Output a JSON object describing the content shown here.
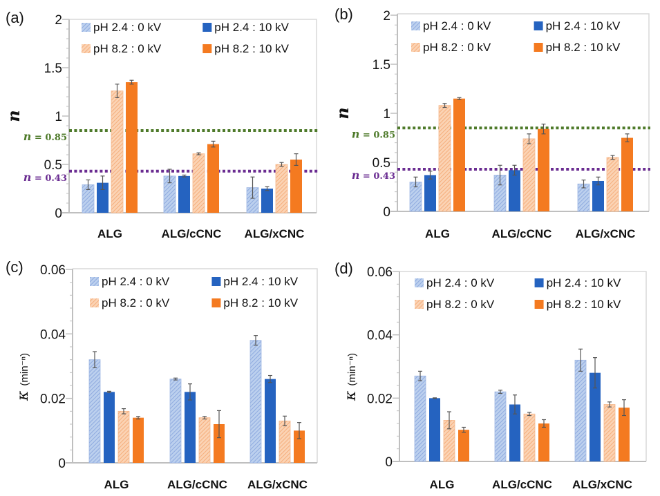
{
  "figure": {
    "colors": {
      "pH2.4_0kV": "#a9bfe6",
      "pH2.4_10kV": "#2563c0",
      "pH8.2_0kV": "#f8c29b",
      "pH8.2_10kV": "#f47a20",
      "ref_085": "#4e7a2a",
      "ref_043": "#6a2c91",
      "axis": "#bfbfbf",
      "errorbar": "#555555"
    }
  },
  "chart_data": [
    {
      "panel": "(a)",
      "type": "bar",
      "title": "",
      "xlabel": "",
      "ylabel": "n",
      "ylim": [
        0,
        2
      ],
      "yticks": [
        "0",
        "0.5",
        "1",
        "1.5",
        "2"
      ],
      "ytick_values": [
        0,
        0.5,
        1,
        1.5,
        2
      ],
      "minor_step": 0.1,
      "categories": [
        "ALG",
        "ALG/cCNC",
        "ALG/xCNC"
      ],
      "legend": "top",
      "series": [
        {
          "name": "pH 2.4 : 0 kV",
          "key": "pH2.4_0kV",
          "hatched": true,
          "values": [
            0.29,
            0.38,
            0.26
          ],
          "errors": [
            0.05,
            0.07,
            0.11
          ]
        },
        {
          "name": "pH 2.4 : 10 kV",
          "key": "pH2.4_10kV",
          "hatched": false,
          "values": [
            0.31,
            0.38,
            0.25
          ],
          "errors": [
            0.07,
            0.01,
            0.02
          ]
        },
        {
          "name": "pH 8.2 : 0 kV",
          "key": "pH8.2_0kV",
          "hatched": true,
          "values": [
            1.26,
            0.61,
            0.5
          ],
          "errors": [
            0.07,
            0.01,
            0.02
          ]
        },
        {
          "name": "pH 8.2 : 10 kV",
          "key": "pH8.2_10kV",
          "hatched": false,
          "values": [
            1.35,
            0.71,
            0.55
          ],
          "errors": [
            0.02,
            0.03,
            0.06
          ]
        }
      ],
      "reference_lines": [
        {
          "label_prefix": "n",
          "label_value": " = 0.85",
          "value": 0.85,
          "key": "ref_085"
        },
        {
          "label_prefix": "n",
          "label_value": " = 0.43",
          "value": 0.43,
          "key": "ref_043"
        }
      ]
    },
    {
      "panel": "(b)",
      "type": "bar",
      "title": "",
      "xlabel": "",
      "ylabel": "n",
      "ylim": [
        0,
        2
      ],
      "yticks": [
        "0",
        "0.5",
        "1",
        "1.5",
        "2"
      ],
      "ytick_values": [
        0,
        0.5,
        1,
        1.5,
        2
      ],
      "minor_step": 0.1,
      "categories": [
        "ALG",
        "ALG/cCNC",
        "ALG/xCNC"
      ],
      "legend": "top",
      "series": [
        {
          "name": "pH 2.4 : 0 kV",
          "key": "pH2.4_0kV",
          "hatched": true,
          "values": [
            0.3,
            0.37,
            0.28
          ],
          "errors": [
            0.05,
            0.1,
            0.04
          ]
        },
        {
          "name": "pH 2.4 : 10 kV",
          "key": "pH2.4_10kV",
          "hatched": false,
          "values": [
            0.37,
            0.42,
            0.31
          ],
          "errors": [
            0.04,
            0.05,
            0.04
          ]
        },
        {
          "name": "pH 8.2 : 0 kV",
          "key": "pH8.2_0kV",
          "hatched": true,
          "values": [
            1.08,
            0.74,
            0.55
          ],
          "errors": [
            0.02,
            0.05,
            0.02
          ]
        },
        {
          "name": "pH 8.2 : 10 kV",
          "key": "pH8.2_10kV",
          "hatched": false,
          "values": [
            1.15,
            0.84,
            0.75
          ],
          "errors": [
            0.01,
            0.05,
            0.04
          ]
        }
      ],
      "reference_lines": [
        {
          "label_prefix": "n",
          "label_value": " = 0.85",
          "value": 0.85,
          "key": "ref_085"
        },
        {
          "label_prefix": "n",
          "label_value": " = 0.43",
          "value": 0.43,
          "key": "ref_043"
        }
      ]
    },
    {
      "panel": "(c)",
      "type": "bar",
      "title": "",
      "xlabel": "",
      "ylabel": "κ (min⁻ⁿ)",
      "ylim": [
        0,
        0.06
      ],
      "yticks": [
        "0",
        "0.02",
        "0.04",
        "0.06"
      ],
      "ytick_values": [
        0,
        0.02,
        0.04,
        0.06
      ],
      "minor_step": 0.004,
      "categories": [
        "ALG",
        "ALG/cCNC",
        "ALG/xCNC"
      ],
      "legend": "top",
      "series": [
        {
          "name": "pH 2.4 : 0 kV",
          "key": "pH2.4_0kV",
          "hatched": true,
          "values": [
            0.032,
            0.026,
            0.038
          ],
          "errors": [
            0.0025,
            0.0003,
            0.0015
          ]
        },
        {
          "name": "pH 2.4 : 10 kV",
          "key": "pH2.4_10kV",
          "hatched": false,
          "values": [
            0.022,
            0.022,
            0.026
          ],
          "errors": [
            0.0002,
            0.0025,
            0.0011
          ]
        },
        {
          "name": "pH 8.2 : 0 kV",
          "key": "pH8.2_0kV",
          "hatched": true,
          "values": [
            0.016,
            0.014,
            0.013
          ],
          "errors": [
            0.0008,
            0.0004,
            0.0015
          ]
        },
        {
          "name": "pH 8.2 : 10 kV",
          "key": "pH8.2_10kV",
          "hatched": false,
          "values": [
            0.014,
            0.012,
            0.01
          ],
          "errors": [
            0.0004,
            0.0042,
            0.0025
          ]
        }
      ],
      "reference_lines": []
    },
    {
      "panel": "(d)",
      "type": "bar",
      "title": "",
      "xlabel": "",
      "ylabel": "κ (min⁻ⁿ)",
      "ylim": [
        0,
        0.06
      ],
      "yticks": [
        "0",
        "0.02",
        "0.04",
        "0.06"
      ],
      "ytick_values": [
        0,
        0.02,
        0.04,
        0.06
      ],
      "minor_step": 0.004,
      "categories": [
        "ALG",
        "ALG/cCNC",
        "ALG/xCNC"
      ],
      "legend": "top",
      "series": [
        {
          "name": "pH 2.4 : 0 kV",
          "key": "pH2.4_0kV",
          "hatched": true,
          "values": [
            0.027,
            0.022,
            0.032
          ],
          "errors": [
            0.0015,
            0.0005,
            0.0035
          ]
        },
        {
          "name": "pH 2.4 : 10 kV",
          "key": "pH2.4_10kV",
          "hatched": false,
          "values": [
            0.02,
            0.018,
            0.028
          ],
          "errors": [
            0.0001,
            0.003,
            0.0048
          ]
        },
        {
          "name": "pH 8.2 : 0 kV",
          "key": "pH8.2_0kV",
          "hatched": true,
          "values": [
            0.013,
            0.015,
            0.018
          ],
          "errors": [
            0.0027,
            0.0005,
            0.0008
          ]
        },
        {
          "name": "pH 8.2 : 10 kV",
          "key": "pH8.2_10kV",
          "hatched": false,
          "values": [
            0.01,
            0.012,
            0.017
          ],
          "errors": [
            0.0008,
            0.0012,
            0.0025
          ]
        }
      ],
      "reference_lines": []
    }
  ]
}
